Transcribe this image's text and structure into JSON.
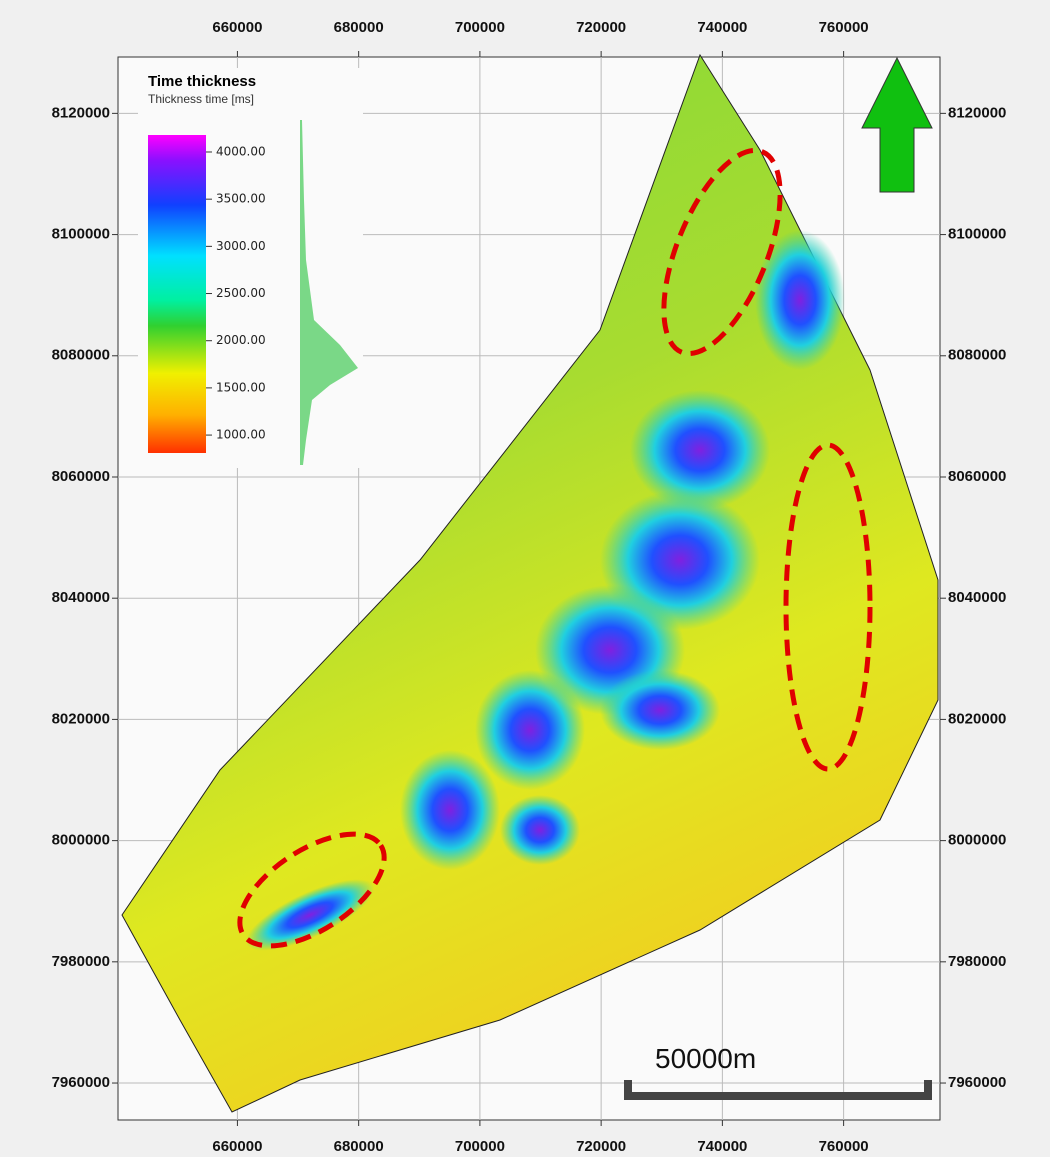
{
  "map": {
    "title": "Time thickness",
    "subtitle": "Thickness time [ms]",
    "xlim": [
      640300,
      775900
    ],
    "ylim": [
      7953900,
      8129300
    ],
    "xticks": [
      660000,
      680000,
      700000,
      720000,
      740000,
      760000
    ],
    "yticks": [
      7960000,
      7980000,
      8000000,
      8020000,
      8040000,
      8060000,
      8080000,
      8100000,
      8120000
    ],
    "colorbar": {
      "clim": [
        810,
        4180
      ],
      "ticks": [
        {
          "value": 1000,
          "label": "1000.00"
        },
        {
          "value": 1500,
          "label": "1500.00"
        },
        {
          "value": 2000,
          "label": "2000.00"
        },
        {
          "value": 2500,
          "label": "2500.00"
        },
        {
          "value": 3000,
          "label": "3000.00"
        },
        {
          "value": 3500,
          "label": "3500.00"
        },
        {
          "value": 4000,
          "label": "4000.00"
        }
      ]
    },
    "scale_bar": {
      "label": "50000m"
    }
  }
}
